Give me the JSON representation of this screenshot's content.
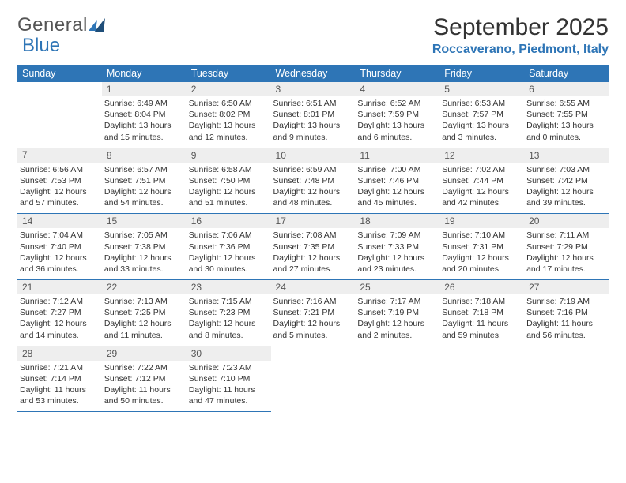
{
  "brand": {
    "part1": "General",
    "part2": "Blue"
  },
  "title": "September 2025",
  "location": "Roccaverano, Piedmont, Italy",
  "colors": {
    "header_blue": "#2e75b6",
    "daynum_bg": "#eeeeee",
    "text": "#333333",
    "logo_dark": "#1f4e79"
  },
  "dow": [
    "Sunday",
    "Monday",
    "Tuesday",
    "Wednesday",
    "Thursday",
    "Friday",
    "Saturday"
  ],
  "weeks": [
    [
      null,
      {
        "n": "1",
        "sr": "Sunrise: 6:49 AM",
        "ss": "Sunset: 8:04 PM",
        "d1": "Daylight: 13 hours",
        "d2": "and 15 minutes."
      },
      {
        "n": "2",
        "sr": "Sunrise: 6:50 AM",
        "ss": "Sunset: 8:02 PM",
        "d1": "Daylight: 13 hours",
        "d2": "and 12 minutes."
      },
      {
        "n": "3",
        "sr": "Sunrise: 6:51 AM",
        "ss": "Sunset: 8:01 PM",
        "d1": "Daylight: 13 hours",
        "d2": "and 9 minutes."
      },
      {
        "n": "4",
        "sr": "Sunrise: 6:52 AM",
        "ss": "Sunset: 7:59 PM",
        "d1": "Daylight: 13 hours",
        "d2": "and 6 minutes."
      },
      {
        "n": "5",
        "sr": "Sunrise: 6:53 AM",
        "ss": "Sunset: 7:57 PM",
        "d1": "Daylight: 13 hours",
        "d2": "and 3 minutes."
      },
      {
        "n": "6",
        "sr": "Sunrise: 6:55 AM",
        "ss": "Sunset: 7:55 PM",
        "d1": "Daylight: 13 hours",
        "d2": "and 0 minutes."
      }
    ],
    [
      {
        "n": "7",
        "sr": "Sunrise: 6:56 AM",
        "ss": "Sunset: 7:53 PM",
        "d1": "Daylight: 12 hours",
        "d2": "and 57 minutes."
      },
      {
        "n": "8",
        "sr": "Sunrise: 6:57 AM",
        "ss": "Sunset: 7:51 PM",
        "d1": "Daylight: 12 hours",
        "d2": "and 54 minutes."
      },
      {
        "n": "9",
        "sr": "Sunrise: 6:58 AM",
        "ss": "Sunset: 7:50 PM",
        "d1": "Daylight: 12 hours",
        "d2": "and 51 minutes."
      },
      {
        "n": "10",
        "sr": "Sunrise: 6:59 AM",
        "ss": "Sunset: 7:48 PM",
        "d1": "Daylight: 12 hours",
        "d2": "and 48 minutes."
      },
      {
        "n": "11",
        "sr": "Sunrise: 7:00 AM",
        "ss": "Sunset: 7:46 PM",
        "d1": "Daylight: 12 hours",
        "d2": "and 45 minutes."
      },
      {
        "n": "12",
        "sr": "Sunrise: 7:02 AM",
        "ss": "Sunset: 7:44 PM",
        "d1": "Daylight: 12 hours",
        "d2": "and 42 minutes."
      },
      {
        "n": "13",
        "sr": "Sunrise: 7:03 AM",
        "ss": "Sunset: 7:42 PM",
        "d1": "Daylight: 12 hours",
        "d2": "and 39 minutes."
      }
    ],
    [
      {
        "n": "14",
        "sr": "Sunrise: 7:04 AM",
        "ss": "Sunset: 7:40 PM",
        "d1": "Daylight: 12 hours",
        "d2": "and 36 minutes."
      },
      {
        "n": "15",
        "sr": "Sunrise: 7:05 AM",
        "ss": "Sunset: 7:38 PM",
        "d1": "Daylight: 12 hours",
        "d2": "and 33 minutes."
      },
      {
        "n": "16",
        "sr": "Sunrise: 7:06 AM",
        "ss": "Sunset: 7:36 PM",
        "d1": "Daylight: 12 hours",
        "d2": "and 30 minutes."
      },
      {
        "n": "17",
        "sr": "Sunrise: 7:08 AM",
        "ss": "Sunset: 7:35 PM",
        "d1": "Daylight: 12 hours",
        "d2": "and 27 minutes."
      },
      {
        "n": "18",
        "sr": "Sunrise: 7:09 AM",
        "ss": "Sunset: 7:33 PM",
        "d1": "Daylight: 12 hours",
        "d2": "and 23 minutes."
      },
      {
        "n": "19",
        "sr": "Sunrise: 7:10 AM",
        "ss": "Sunset: 7:31 PM",
        "d1": "Daylight: 12 hours",
        "d2": "and 20 minutes."
      },
      {
        "n": "20",
        "sr": "Sunrise: 7:11 AM",
        "ss": "Sunset: 7:29 PM",
        "d1": "Daylight: 12 hours",
        "d2": "and 17 minutes."
      }
    ],
    [
      {
        "n": "21",
        "sr": "Sunrise: 7:12 AM",
        "ss": "Sunset: 7:27 PM",
        "d1": "Daylight: 12 hours",
        "d2": "and 14 minutes."
      },
      {
        "n": "22",
        "sr": "Sunrise: 7:13 AM",
        "ss": "Sunset: 7:25 PM",
        "d1": "Daylight: 12 hours",
        "d2": "and 11 minutes."
      },
      {
        "n": "23",
        "sr": "Sunrise: 7:15 AM",
        "ss": "Sunset: 7:23 PM",
        "d1": "Daylight: 12 hours",
        "d2": "and 8 minutes."
      },
      {
        "n": "24",
        "sr": "Sunrise: 7:16 AM",
        "ss": "Sunset: 7:21 PM",
        "d1": "Daylight: 12 hours",
        "d2": "and 5 minutes."
      },
      {
        "n": "25",
        "sr": "Sunrise: 7:17 AM",
        "ss": "Sunset: 7:19 PM",
        "d1": "Daylight: 12 hours",
        "d2": "and 2 minutes."
      },
      {
        "n": "26",
        "sr": "Sunrise: 7:18 AM",
        "ss": "Sunset: 7:18 PM",
        "d1": "Daylight: 11 hours",
        "d2": "and 59 minutes."
      },
      {
        "n": "27",
        "sr": "Sunrise: 7:19 AM",
        "ss": "Sunset: 7:16 PM",
        "d1": "Daylight: 11 hours",
        "d2": "and 56 minutes."
      }
    ],
    [
      {
        "n": "28",
        "sr": "Sunrise: 7:21 AM",
        "ss": "Sunset: 7:14 PM",
        "d1": "Daylight: 11 hours",
        "d2": "and 53 minutes."
      },
      {
        "n": "29",
        "sr": "Sunrise: 7:22 AM",
        "ss": "Sunset: 7:12 PM",
        "d1": "Daylight: 11 hours",
        "d2": "and 50 minutes."
      },
      {
        "n": "30",
        "sr": "Sunrise: 7:23 AM",
        "ss": "Sunset: 7:10 PM",
        "d1": "Daylight: 11 hours",
        "d2": "and 47 minutes."
      },
      null,
      null,
      null,
      null
    ]
  ]
}
